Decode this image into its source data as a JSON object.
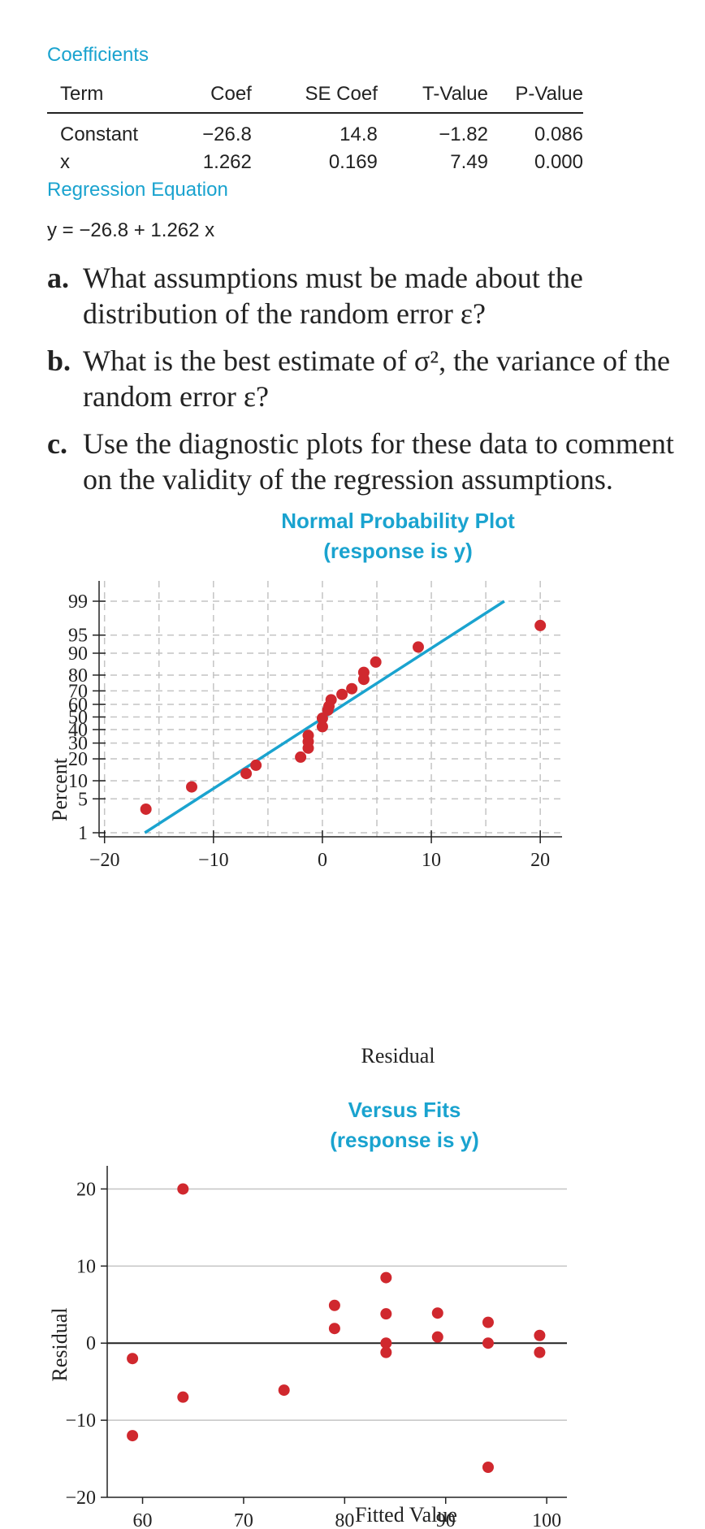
{
  "coefficients": {
    "heading": "Coefficients",
    "headers": [
      "Term",
      "Coef",
      "SE Coef",
      "T-Value",
      "P-Value"
    ],
    "rows": [
      [
        "Constant",
        "−26.8",
        "14.8",
        "−1.82",
        "0.086"
      ],
      [
        "x",
        "1.262",
        "0.169",
        "7.49",
        "0.000"
      ]
    ]
  },
  "regression": {
    "heading": "Regression Equation",
    "equation": "y = −26.8 + 1.262 x"
  },
  "questions": [
    {
      "letter": "a.",
      "text": "What assumptions must be made about the distribution of the random error ε?"
    },
    {
      "letter": "b.",
      "text": "What is the best estimate of σ², the variance of the random error ε?"
    },
    {
      "letter": "c.",
      "text": "Use the diagnostic plots for these data to comment on the validity of the regression assumptions."
    }
  ],
  "colors": {
    "title": "#1aa3cf",
    "point": "#d0282e",
    "line": "#1aa3cf",
    "grid": "#c4c4c4"
  },
  "chart_data": [
    {
      "type": "scatter",
      "title": "Normal Probability Plot",
      "subtitle": "(response is y)",
      "xlabel": "Residual",
      "ylabel": "Percent",
      "xlim": [
        -20.5,
        22
      ],
      "ylim": [
        1,
        99
      ],
      "yscale": "normal-probability",
      "xticks": [
        "−20",
        "−10",
        "0",
        "10",
        "20"
      ],
      "xtick_values": [
        -20,
        -10,
        0,
        10,
        20
      ],
      "xgrid_values": [
        -15,
        -10,
        -5,
        0,
        5,
        10,
        15,
        20
      ],
      "yticks": [
        "1",
        "5",
        "10",
        "20",
        "30",
        "40",
        "50",
        "60",
        "70",
        "80",
        "90",
        "95",
        "99"
      ],
      "ytick_values": [
        1,
        5,
        10,
        20,
        30,
        40,
        50,
        60,
        70,
        80,
        90,
        95,
        99
      ],
      "grid": true,
      "fit_line": {
        "x": [
          -16.3,
          16.7
        ],
        "y": [
          1,
          99
        ]
      },
      "points": [
        {
          "x": -16.2,
          "y": 3.2
        },
        {
          "x": -12.0,
          "y": 8.0
        },
        {
          "x": -7.0,
          "y": 12.8
        },
        {
          "x": -6.1,
          "y": 16.6
        },
        {
          "x": -2.0,
          "y": 21.0
        },
        {
          "x": -1.3,
          "y": 26.6
        },
        {
          "x": -1.3,
          "y": 31.0
        },
        {
          "x": -1.3,
          "y": 35.5
        },
        {
          "x": 0.0,
          "y": 42.3
        },
        {
          "x": 0.0,
          "y": 49.0
        },
        {
          "x": 0.5,
          "y": 55.5
        },
        {
          "x": 0.6,
          "y": 58.5
        },
        {
          "x": 0.8,
          "y": 63.5
        },
        {
          "x": 1.8,
          "y": 67.5
        },
        {
          "x": 2.7,
          "y": 71.5
        },
        {
          "x": 3.8,
          "y": 77.5
        },
        {
          "x": 3.8,
          "y": 81.5
        },
        {
          "x": 4.9,
          "y": 86.5
        },
        {
          "x": 8.8,
          "y": 92.0
        },
        {
          "x": 20.0,
          "y": 96.7
        }
      ]
    },
    {
      "type": "scatter",
      "title": "Versus Fits",
      "subtitle": "(response is y)",
      "xlabel": "Fitted Value",
      "ylabel": "Residual",
      "xlim": [
        56.5,
        102
      ],
      "ylim": [
        -20,
        23
      ],
      "xticks": [
        "60",
        "70",
        "80",
        "90",
        "100"
      ],
      "xtick_values": [
        60,
        70,
        80,
        90,
        100
      ],
      "yticks": [
        "−20",
        "−10",
        "0",
        "10",
        "20"
      ],
      "ytick_values": [
        -20,
        -10,
        0,
        10,
        20
      ],
      "grid": true,
      "points": [
        {
          "x": 59.0,
          "y": -2.0
        },
        {
          "x": 59.0,
          "y": -12.0
        },
        {
          "x": 64.0,
          "y": 20.0
        },
        {
          "x": 64.0,
          "y": -7.0
        },
        {
          "x": 74.0,
          "y": -6.1
        },
        {
          "x": 79.0,
          "y": 4.9
        },
        {
          "x": 79.0,
          "y": 1.9
        },
        {
          "x": 84.1,
          "y": 8.5
        },
        {
          "x": 84.1,
          "y": 3.8
        },
        {
          "x": 84.1,
          "y": 0.0
        },
        {
          "x": 84.1,
          "y": -1.2
        },
        {
          "x": 89.2,
          "y": 3.9
        },
        {
          "x": 89.2,
          "y": 0.8
        },
        {
          "x": 94.2,
          "y": 2.7
        },
        {
          "x": 94.2,
          "y": 0.0
        },
        {
          "x": 94.2,
          "y": -16.1
        },
        {
          "x": 99.3,
          "y": 1.0
        },
        {
          "x": 99.3,
          "y": -1.2
        }
      ]
    }
  ]
}
